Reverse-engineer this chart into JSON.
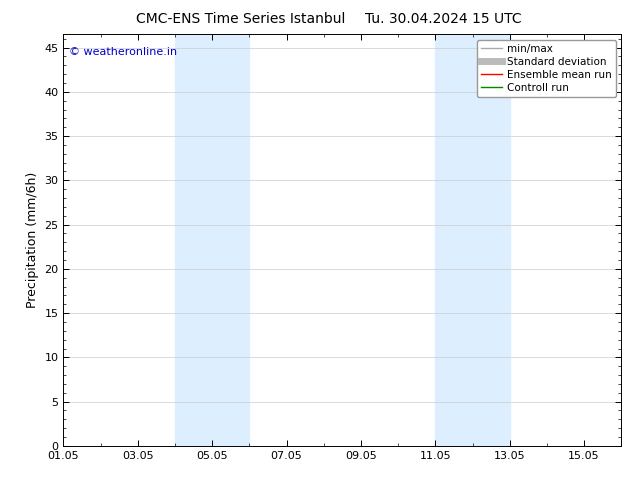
{
  "title": "CMC-ENS Time Series Istanbul",
  "title2": "Tu. 30.04.2024 15 UTC",
  "ylabel": "Precipitation (mm/6h)",
  "xlim": [
    0,
    15
  ],
  "ylim": [
    0,
    46.5
  ],
  "yticks": [
    0,
    5,
    10,
    15,
    20,
    25,
    30,
    35,
    40,
    45
  ],
  "xtick_positions": [
    0,
    2,
    4,
    6,
    8,
    10,
    12,
    14
  ],
  "xtick_labels": [
    "01.05",
    "03.05",
    "05.05",
    "07.05",
    "09.05",
    "11.05",
    "13.05",
    "15.05"
  ],
  "shaded_regions": [
    {
      "x_start": 3.0,
      "x_end": 5.0,
      "color": "#ddeeff"
    },
    {
      "x_start": 10.0,
      "x_end": 12.0,
      "color": "#ddeeff"
    }
  ],
  "watermark": "© weatheronline.in",
  "watermark_color": "#0000cc",
  "legend_items": [
    {
      "label": "min/max",
      "color": "#aaaaaa",
      "lw": 1.0
    },
    {
      "label": "Standard deviation",
      "color": "#bbbbbb",
      "lw": 5
    },
    {
      "label": "Ensemble mean run",
      "color": "#ff0000",
      "lw": 1.0
    },
    {
      "label": "Controll run",
      "color": "#008800",
      "lw": 1.0
    }
  ],
  "bg_color": "#ffffff",
  "plot_bg_color": "#ffffff",
  "grid_color": "#cccccc",
  "tick_color": "#000000",
  "font_size": 8,
  "title_font_size": 10,
  "ylabel_fontsize": 9
}
